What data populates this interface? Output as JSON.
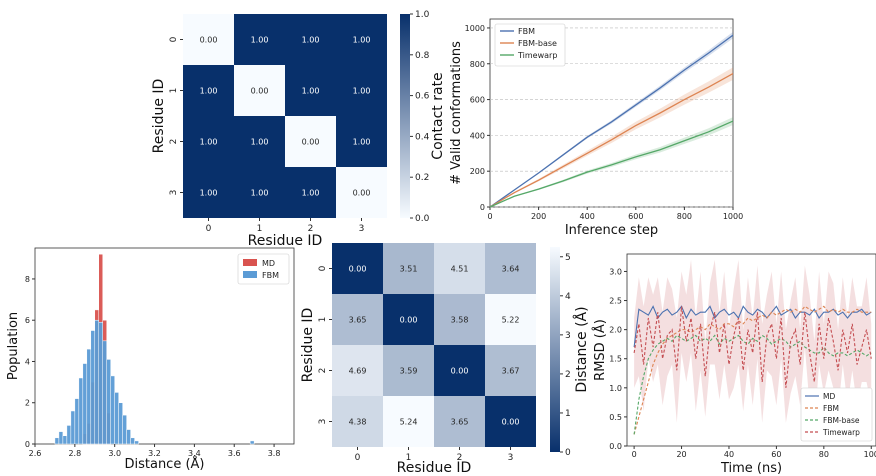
{
  "chart_data": [
    {
      "type": "heatmap",
      "xlabel": "Residue ID",
      "ylabel": "Residue ID",
      "x_ticks": [
        "0",
        "1",
        "2",
        "3"
      ],
      "y_ticks": [
        "0",
        "1",
        "2",
        "3"
      ],
      "values": [
        [
          0.0,
          1.0,
          1.0,
          1.0
        ],
        [
          1.0,
          0.0,
          1.0,
          1.0
        ],
        [
          1.0,
          1.0,
          0.0,
          1.0
        ],
        [
          1.0,
          1.0,
          1.0,
          0.0
        ]
      ],
      "cell_labels": [
        [
          "0.00",
          "1.00",
          "1.00",
          "1.00"
        ],
        [
          "1.00",
          "0.00",
          "1.00",
          "1.00"
        ],
        [
          "1.00",
          "1.00",
          "0.00",
          "1.00"
        ],
        [
          "1.00",
          "1.00",
          "1.00",
          "0.00"
        ]
      ],
      "colorbar": {
        "label": "Contact rate",
        "range": [
          0,
          1
        ],
        "ticks": [
          "1.0",
          "0.8",
          "0.6",
          "0.4",
          "0.2",
          "0.0"
        ],
        "low_color": "#f7fbff",
        "high_color": "#08306b"
      }
    },
    {
      "type": "line",
      "xlabel": "Inference step",
      "ylabel": "# Valid conformations",
      "xlim": [
        0,
        1000
      ],
      "ylim": [
        0,
        1050
      ],
      "x_ticks": [
        "0",
        "200",
        "400",
        "600",
        "800",
        "1000"
      ],
      "y_ticks": [
        "0",
        "200",
        "400",
        "600",
        "800",
        "1000"
      ],
      "grid": true,
      "legend_position": "top-left",
      "x": [
        0,
        100,
        200,
        300,
        400,
        500,
        600,
        700,
        800,
        900,
        1000
      ],
      "series": [
        {
          "name": "FBM",
          "color": "#4c72b0",
          "values": [
            0,
            95,
            190,
            290,
            390,
            475,
            570,
            665,
            765,
            860,
            960
          ],
          "band": 18
        },
        {
          "name": "FBM-base",
          "color": "#dd8452",
          "values": [
            0,
            80,
            150,
            225,
            300,
            375,
            455,
            525,
            600,
            670,
            745
          ],
          "band": 35
        },
        {
          "name": "Timewarp",
          "color": "#55a868",
          "values": [
            0,
            60,
            100,
            145,
            195,
            235,
            280,
            320,
            370,
            420,
            480
          ],
          "band": 22
        }
      ]
    },
    {
      "type": "bar",
      "xlabel": "Distance (Å)",
      "ylabel": "Population",
      "xlim": [
        2.6,
        3.9
      ],
      "ylim": [
        0,
        9.5
      ],
      "x_ticks": [
        "2.6",
        "2.8",
        "3.0",
        "3.2",
        "3.4",
        "3.6",
        "3.8"
      ],
      "y_ticks": [
        "0",
        "2",
        "4",
        "6",
        "8"
      ],
      "legend_position": "top-right",
      "bin_width": 0.02,
      "series": [
        {
          "name": "MD",
          "color": "#d9534f",
          "x": [
            2.85,
            2.87,
            2.89,
            2.91,
            2.93,
            2.95,
            2.97
          ],
          "values": [
            0.5,
            1.0,
            3.0,
            6.5,
            9.2,
            6.0,
            1.5
          ]
        },
        {
          "name": "FBM",
          "color": "#5b9bd5",
          "x": [
            2.71,
            2.73,
            2.75,
            2.77,
            2.79,
            2.81,
            2.83,
            2.85,
            2.87,
            2.89,
            2.91,
            2.93,
            2.95,
            2.97,
            2.99,
            3.01,
            3.03,
            3.05,
            3.07,
            3.09,
            3.11,
            3.69
          ],
          "values": [
            0.3,
            0.6,
            0.4,
            0.9,
            1.6,
            2.2,
            3.2,
            3.9,
            4.6,
            5.5,
            6.0,
            5.9,
            5.0,
            4.1,
            3.3,
            2.5,
            2.0,
            1.4,
            0.7,
            0.3,
            0.15,
            0.15
          ]
        }
      ]
    },
    {
      "type": "heatmap",
      "xlabel": "Residue ID",
      "ylabel": "Residue ID",
      "x_ticks": [
        "0",
        "1",
        "2",
        "3"
      ],
      "y_ticks": [
        "0",
        "1",
        "2",
        "3"
      ],
      "values": [
        [
          0.0,
          3.51,
          4.51,
          3.64
        ],
        [
          3.65,
          0.0,
          3.58,
          5.22
        ],
        [
          4.69,
          3.59,
          0.0,
          3.67
        ],
        [
          4.38,
          5.24,
          3.65,
          0.0
        ]
      ],
      "cell_labels": [
        [
          "0.00",
          "3.51",
          "4.51",
          "3.64"
        ],
        [
          "3.65",
          "0.00",
          "3.58",
          "5.22"
        ],
        [
          "4.69",
          "3.59",
          "0.00",
          "3.67"
        ],
        [
          "4.38",
          "5.24",
          "3.65",
          "0.00"
        ]
      ],
      "colorbar": {
        "label": "Distance (Å)",
        "range": [
          0,
          5.25
        ],
        "ticks": [
          "5",
          "4",
          "3",
          "2",
          "1",
          "0"
        ],
        "low_color": "#08306b",
        "high_color": "#f7fbff"
      }
    },
    {
      "type": "line",
      "xlabel": "Time (ns)",
      "ylabel": "RMSD (Å)",
      "xlim": [
        -3,
        102
      ],
      "ylim": [
        0,
        3.3
      ],
      "x_ticks": [
        "0",
        "20",
        "40",
        "60",
        "80",
        "100"
      ],
      "y_ticks": [
        "0.0",
        "0.5",
        "1.0",
        "1.5",
        "2.0",
        "2.5",
        "3.0"
      ],
      "legend_position": "bottom-right",
      "x": [
        0,
        2,
        4,
        6,
        8,
        10,
        12,
        14,
        16,
        18,
        20,
        22,
        24,
        26,
        28,
        30,
        32,
        34,
        36,
        38,
        40,
        42,
        44,
        46,
        48,
        50,
        52,
        54,
        56,
        58,
        60,
        62,
        64,
        66,
        68,
        70,
        72,
        74,
        76,
        78,
        80,
        82,
        84,
        86,
        88,
        90,
        92,
        94,
        96,
        98,
        100
      ],
      "series": [
        {
          "name": "MD",
          "style": "solid",
          "color": "#4c72b0",
          "values": [
            1.7,
            2.35,
            2.3,
            2.25,
            2.4,
            2.2,
            2.3,
            2.35,
            2.25,
            2.3,
            2.4,
            2.2,
            2.35,
            2.25,
            2.3,
            2.3,
            2.4,
            2.2,
            2.3,
            2.35,
            2.25,
            2.3,
            2.2,
            2.4,
            2.3,
            2.25,
            2.35,
            2.3,
            2.2,
            2.3,
            2.4,
            2.25,
            2.3,
            2.35,
            2.2,
            2.3,
            2.3,
            2.25,
            2.35,
            2.2,
            2.3,
            2.3,
            2.35,
            2.25,
            2.3,
            2.2,
            2.3,
            2.3,
            2.35,
            2.25,
            2.3
          ]
        },
        {
          "name": "FBM",
          "style": "dashed",
          "color": "#dd8452",
          "values": [
            0.2,
            0.5,
            0.8,
            1.1,
            1.4,
            1.6,
            1.75,
            1.85,
            1.9,
            1.95,
            2.0,
            2.0,
            1.95,
            2.0,
            2.05,
            2.0,
            2.1,
            2.05,
            2.0,
            2.1,
            2.1,
            2.05,
            2.15,
            2.1,
            2.2,
            2.15,
            2.2,
            2.25,
            2.2,
            2.3,
            2.25,
            2.3,
            2.35,
            2.3,
            2.35,
            2.3,
            2.4,
            2.35,
            2.3,
            2.35,
            2.4,
            2.3,
            2.35,
            2.3,
            2.35,
            2.3,
            2.3,
            2.35,
            2.3,
            2.3,
            2.3
          ]
        },
        {
          "name": "FBM-base",
          "style": "dashed",
          "color": "#55a868",
          "values": [
            0.2,
            0.8,
            1.2,
            1.5,
            1.65,
            1.75,
            1.8,
            1.85,
            1.8,
            1.9,
            1.85,
            1.8,
            1.85,
            1.9,
            1.8,
            1.85,
            1.8,
            1.9,
            1.75,
            1.85,
            1.8,
            1.85,
            1.9,
            1.8,
            1.75,
            1.85,
            1.8,
            1.9,
            1.85,
            1.75,
            1.8,
            1.85,
            1.8,
            1.7,
            1.75,
            1.8,
            1.7,
            1.65,
            1.6,
            1.6,
            1.7,
            1.6,
            1.55,
            1.6,
            1.6,
            1.55,
            1.6,
            1.65,
            1.6,
            1.55,
            1.6
          ]
        },
        {
          "name": "Timewarp",
          "style": "dashed",
          "color": "#c44e52",
          "values": [
            1.6,
            2.1,
            1.4,
            2.2,
            1.7,
            2.3,
            1.5,
            1.9,
            2.0,
            1.3,
            2.4,
            1.8,
            2.2,
            1.5,
            2.1,
            1.2,
            2.0,
            2.3,
            1.6,
            2.1,
            1.4,
            1.9,
            2.2,
            1.3,
            2.0,
            1.6,
            2.3,
            1.1,
            1.9,
            2.1,
            1.5,
            2.2,
            1.0,
            1.8,
            2.0,
            1.4,
            2.3,
            1.6,
            1.1,
            2.1,
            1.5,
            2.2,
            1.8,
            1.3,
            2.0,
            1.6,
            2.1,
            1.4,
            1.7,
            2.0,
            1.5
          ]
        }
      ]
    }
  ]
}
